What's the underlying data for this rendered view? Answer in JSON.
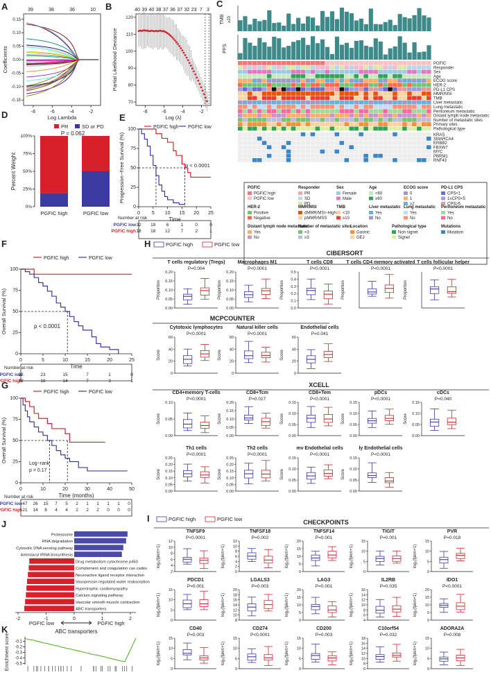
{
  "figure": {
    "panels": [
      "A",
      "B",
      "C",
      "D",
      "E",
      "F",
      "G",
      "H",
      "I",
      "J",
      "K"
    ]
  },
  "colors": {
    "high": "#d8202b",
    "low": "#3a3aa0",
    "teal": "#3e8a8a",
    "grey": "#cccccc"
  },
  "chart_data": [
    {
      "panel": "A",
      "type": "line",
      "top_ticks": [
        "39",
        "38",
        "36",
        "10"
      ],
      "xlabel": "Log Lambda",
      "ylabel": "Coefficients",
      "xticks": [
        "-8",
        "-6",
        "-4",
        "-2"
      ],
      "yticks": [
        "-0.15",
        "-0.10",
        "-0.05",
        "0.00",
        "0.05",
        "0.10",
        "0.15"
      ],
      "ylim": [
        -0.17,
        0.17
      ],
      "xlim": [
        -9,
        -1
      ]
    },
    {
      "panel": "B",
      "type": "line",
      "top_ticks": [
        "40",
        "39",
        "40",
        "38",
        "37",
        "36",
        "37",
        "32",
        "23",
        "7",
        "3"
      ],
      "xlabel": "Log (λ)",
      "ylabel": "Partial Likelihood Deviance",
      "xticks": [
        "-8",
        "-6",
        "-4",
        "-2"
      ],
      "yticks": [
        "70",
        "80",
        "90",
        "100",
        "110",
        "120"
      ],
      "ylim": [
        68,
        122
      ],
      "xlim": [
        -9,
        -1
      ]
    },
    {
      "panel": "C",
      "type": "heatmap",
      "bar_titles": [
        "TMB\n≥20",
        "PFS"
      ],
      "rows": [
        "PGFIC",
        "Responder",
        "Sex",
        "Age",
        "ECOG score",
        "HER-2",
        "PD-L1 CPS",
        "MMR/MSI",
        "TMB",
        "Liver metastatic",
        "Lung metastatic",
        "Peritoneum metastatic",
        "Distant lymph node metastatic",
        "Number of metastatic sites",
        "Primary sites",
        "Pathological type"
      ],
      "mut_rows": [
        "KRAS",
        "SMARCA4",
        "ERBB2",
        "FBXW7",
        "MYC",
        "PBRM1",
        "RNF43"
      ],
      "legend": [
        {
          "title": "PGFIC",
          "items": [
            "PGFIC high",
            "PGFIC low"
          ]
        },
        {
          "title": "Responder",
          "items": [
            "PR",
            "SD",
            "PD"
          ]
        },
        {
          "title": "Sex",
          "items": [
            "Female",
            "Male"
          ]
        },
        {
          "title": "Age",
          "items": [
            "<60",
            "≥60"
          ]
        },
        {
          "title": "ECOG score",
          "items": [
            "0",
            "1",
            "≥2"
          ]
        },
        {
          "title": "PD-L1 CPS",
          "items": [
            "CPS<1",
            "1≤CPS<5",
            "CPS≥5"
          ]
        },
        {
          "title": "HER-2",
          "items": [
            "Positive",
            "Negative"
          ]
        },
        {
          "title": "MMR/MSI",
          "items": [
            "dMMR/MSI−High",
            "pMMR/MSS"
          ]
        },
        {
          "title": "TMB",
          "items": [
            "<10",
            "≥10"
          ]
        },
        {
          "title": "Liver metastatic",
          "items": [
            "Yes",
            "No"
          ]
        },
        {
          "title": "Lung metastatic",
          "items": [
            "Yes",
            "No"
          ]
        },
        {
          "title": "Peritoneum metastatic",
          "items": [
            "Yes",
            "No"
          ]
        },
        {
          "title": "Distant lymph node metastatic",
          "items": [
            "Yes",
            "No"
          ]
        },
        {
          "title": "Number of metastatic sites",
          "items": [
            "<3",
            "≥3"
          ]
        },
        {
          "title": "Location",
          "items": [
            "Gastric",
            "GEJ"
          ]
        },
        {
          "title": "Pathological type",
          "items": [
            "Non signet",
            "Signet"
          ]
        },
        {
          "title": "Mutations",
          "items": [
            "Mutation"
          ]
        }
      ]
    },
    {
      "panel": "D",
      "type": "bar",
      "categories": [
        "PGFIC high",
        "PGFIC low"
      ],
      "series": [
        {
          "name": "SD or PD",
          "values": [
            19,
            50
          ]
        },
        {
          "name": "PR",
          "values": [
            81,
            50
          ]
        }
      ],
      "ylabel": "Percent Weight",
      "yticks": [
        "0%",
        "25%",
        "50%",
        "75%",
        "100%"
      ],
      "annotation": "P = 0.062",
      "legend": [
        "PR",
        "SD or PD"
      ]
    },
    {
      "panel": "E",
      "type": "line",
      "legend": [
        "PGFIC high",
        "PGFIC low"
      ],
      "ylabel": "Progression−Free Survival (%)",
      "xlabel": "Time",
      "xticks": [
        "0",
        "5",
        "10",
        "15",
        "20",
        "25"
      ],
      "yticks": [
        "0",
        "25",
        "50",
        "75",
        "100"
      ],
      "pvalue": "p < 0.0001",
      "risk_title": "Number at risk",
      "risk": [
        {
          "name": "PGFIC low",
          "values": [
            "32",
            "19",
            "6",
            "1",
            "0",
            "0"
          ]
        },
        {
          "name": "PGFIC high",
          "values": [
            "18",
            "18",
            "12",
            "7",
            "2",
            "1"
          ]
        }
      ]
    },
    {
      "panel": "F",
      "type": "line",
      "legend": [
        "PGFIC high",
        "PGFIC low"
      ],
      "ylabel": "Overall Survival (%)",
      "xlabel": "Time",
      "xticks": [
        "0",
        "5",
        "10",
        "15",
        "20",
        "25"
      ],
      "yticks": [
        "0",
        "25",
        "50",
        "75",
        "100"
      ],
      "pvalue": "p < 0.0001",
      "risk_title": "Number at risk",
      "risk": [
        {
          "name": "PGFIC low",
          "values": [
            "32",
            "23",
            "15",
            "7",
            "1",
            "0"
          ]
        },
        {
          "name": "PGFIC high",
          "values": [
            "18",
            "18",
            "14",
            "7",
            "3",
            "1"
          ]
        }
      ]
    },
    {
      "panel": "G",
      "type": "line",
      "legend": [
        "PGFIC high",
        "PGFIC low"
      ],
      "ylabel": "Overall Survival (%)",
      "xlabel": "Time (months)",
      "xticks": [
        "0",
        "10",
        "20",
        "30",
        "40",
        "50"
      ],
      "yticks": [
        "0",
        "25",
        "50",
        "75",
        "100"
      ],
      "pvalue": "Log−rank\np = 0.17",
      "risk_title": "Number at risk",
      "risk_ticks": [
        "0",
        "5",
        "10",
        "15",
        "20",
        "25",
        "30",
        "35",
        "40",
        "45",
        "50"
      ],
      "risk": [
        {
          "name": "PGFIC low",
          "values": [
            "47",
            "26",
            "15",
            "7",
            "5",
            "2",
            "1",
            "1",
            "1",
            "1",
            "0"
          ]
        },
        {
          "name": "PGFIC high",
          "values": [
            "21",
            "14",
            "8",
            "4",
            "4",
            "2",
            "2",
            "2",
            "0",
            "0",
            "0"
          ]
        }
      ]
    },
    {
      "panel": "H",
      "type": "box",
      "legend": [
        "PGFIC high",
        "PGFIC low"
      ],
      "sections": [
        {
          "title": "CIBERSORT",
          "ylabel": "Proportion",
          "plots": [
            {
              "title": "T cells regulatory (Tregs)",
              "p": "P=0.004",
              "yticks": [
                "0.00",
                "0.05",
                "0.10",
                "0.15",
                "0.20"
              ]
            },
            {
              "title": "Macrophages M1",
              "p": "P<0.0001",
              "yticks": [
                "0.00",
                "0.05",
                "0.10",
                "0.15",
                "0.20"
              ]
            },
            {
              "title": "T cells CD8",
              "p": "P<0.0001",
              "yticks": [
                "0.0",
                "0.1",
                "0.2",
                "0.3",
                "0.4",
                "0.5"
              ]
            },
            {
              "title": "T cells CD4 memory activated",
              "p": "P<0.0001",
              "yticks": []
            },
            {
              "title": "T cells follicular helper",
              "p": "P<0.0001",
              "yticks": []
            }
          ]
        },
        {
          "title": "MCPCOUNTER",
          "ylabel": "Score",
          "plots": [
            {
              "title": "Cytotoxic lymphocytes",
              "p": "P<0.0001",
              "yticks": [
                "0",
                "20",
                "40",
                "60"
              ]
            },
            {
              "title": "Natural killer cells",
              "p": "P<0.0001",
              "yticks": [
                "0",
                "20",
                "40",
                "60"
              ]
            },
            {
              "title": "Endothelial cells",
              "p": "P=0.041",
              "yticks": [
                "0",
                "20",
                "40",
                "60"
              ]
            }
          ]
        },
        {
          "title": "XCELL",
          "ylabel": "Score",
          "plots": [
            {
              "title": "CD4+memory T-cells",
              "p": "P<0.0001",
              "yticks": [
                "0.00",
                "0.05",
                "0.10"
              ]
            },
            {
              "title": "CD8+Tcm",
              "p": "P=0.017",
              "yticks": [
                "0.00",
                "0.05",
                "0.10",
                "0.15",
                "0.20"
              ]
            },
            {
              "title": "CD8+Tem",
              "p": "P<0.0001",
              "yticks": [
                "0.00",
                "0.05",
                "0.10",
                "0.15"
              ]
            },
            {
              "title": "pDCs",
              "p": "P<0.0001",
              "yticks": [
                "0.00",
                "0.05",
                "0.10",
                "0.15"
              ]
            },
            {
              "title": "cDCs",
              "p": "P=0.040",
              "yticks": [
                "0.00",
                "0.05",
                "0.10",
                "0.15"
              ]
            },
            {
              "title": "Th1 cells",
              "p": "P<0.0001",
              "yticks": [
                "0.00",
                "0.05",
                "0.10",
                "0.15",
                "0.20",
                "0.25"
              ]
            },
            {
              "title": "Th2 cells",
              "p": "P<0.0001",
              "yticks": [
                "0.00",
                "0.05",
                "0.10",
                "0.15",
                "0.20",
                "0.25"
              ]
            },
            {
              "title": "mv Endothelial cells",
              "p": "P<0.0001",
              "yticks": [
                "0.00",
                "0.05",
                "0.10",
                "0.15"
              ]
            },
            {
              "title": "ly Endothelial cells",
              "p": "P<0.0001",
              "yticks": [
                "0.00",
                "0.05",
                "0.10",
                "0.15"
              ]
            }
          ]
        }
      ]
    },
    {
      "panel": "I",
      "type": "box",
      "legend": [
        "PGFIC high",
        "PGFIC low"
      ],
      "section": "CHECKPOINTS",
      "ylabel": "log₂(fpkm+1)",
      "plots": [
        {
          "title": "TNFSF9",
          "p": "P<0.0001",
          "yticks": [
            "2",
            "4",
            "6",
            "8",
            "10",
            "12"
          ]
        },
        {
          "title": "TNFSF18",
          "p": "P=0.002",
          "yticks": [
            "0",
            "2",
            "4",
            "6",
            "8",
            "10",
            "12"
          ]
        },
        {
          "title": "TNFSF14",
          "p": "P=0.001",
          "yticks": [
            "0",
            "5",
            "10",
            "15",
            "20"
          ]
        },
        {
          "title": "TIGIT",
          "p": "P=0.001",
          "yticks": [
            "0",
            "5",
            "10",
            "15"
          ]
        },
        {
          "title": "PVR",
          "p": "P=0.018",
          "yticks": [
            "0",
            "5",
            "10",
            "15"
          ]
        },
        {
          "title": "PDCD1",
          "p": "P=0.001",
          "yticks": [
            "0",
            "5",
            "10",
            "15"
          ]
        },
        {
          "title": "LGALS3",
          "p": "P=0.003",
          "yticks": [
            "8",
            "10",
            "12",
            "14",
            "16",
            "18",
            "20"
          ]
        },
        {
          "title": "LAG3",
          "p": "P=0.001",
          "yticks": [
            "0",
            "5",
            "10",
            "15",
            "20"
          ]
        },
        {
          "title": "IL2RB",
          "p": "P=0.035",
          "yticks": [
            "4",
            "6",
            "8",
            "10",
            "12",
            "14",
            "16"
          ]
        },
        {
          "title": "IDO1",
          "p": "P<0.0001",
          "yticks": [
            "0",
            "5",
            "10",
            "15",
            "20"
          ]
        },
        {
          "title": "CD40",
          "p": "P=0.003",
          "yticks": [
            "0",
            "5",
            "10",
            "15"
          ]
        },
        {
          "title": "CD274",
          "p": "P<0.0001",
          "yticks": [
            "0",
            "5",
            "10",
            "15"
          ]
        },
        {
          "title": "CD200",
          "p": "P=0.003",
          "yticks": [
            "0",
            "5",
            "10",
            "15"
          ]
        },
        {
          "title": "C10orf54",
          "p": "P=0.032",
          "yticks": [
            "6",
            "8",
            "10",
            "12",
            "14",
            "16",
            "18"
          ]
        },
        {
          "title": "ADORA2A",
          "p": "P=0.008",
          "yticks": [
            "0",
            "5",
            "10",
            "15"
          ]
        }
      ]
    },
    {
      "panel": "J",
      "type": "bar",
      "categories": [
        "Proteasome",
        "RNA degradation",
        "Cytosolic DNA sensing pathway",
        "Aminoacyl tRNA biosynthesis",
        "Drug metabolism cytochrome p450",
        "Complement and coagulation cas cades",
        "Neuroactive ligand receptor interaction",
        "Vasopressin regulated water reabsorption",
        "Hypertrophic cardiomyopathy",
        "Calcium signaling pathway",
        "Vascular smooth muscle contraction",
        "ABC transporters"
      ],
      "values": [
        1.9,
        1.85,
        1.75,
        1.7,
        -1.6,
        -1.62,
        -1.65,
        -1.68,
        -1.7,
        -1.72,
        -1.75,
        -1.78
      ],
      "xticks": [
        "-2",
        "-1",
        "0",
        "1",
        "2"
      ],
      "xlim": [
        -2.1,
        2.2
      ],
      "labels": [
        "PGFIC low",
        "PGFIC high"
      ]
    },
    {
      "panel": "K",
      "type": "line",
      "title": "ABC transporters",
      "ylabel": "Enrichment score",
      "yticks": [
        "-0.5",
        "-0.4",
        "-0.3",
        "-0.2",
        "-0.1"
      ],
      "ylim": [
        -0.52,
        -0.02
      ],
      "labels": [
        "PGFIC low",
        "PGFIC high"
      ]
    }
  ]
}
